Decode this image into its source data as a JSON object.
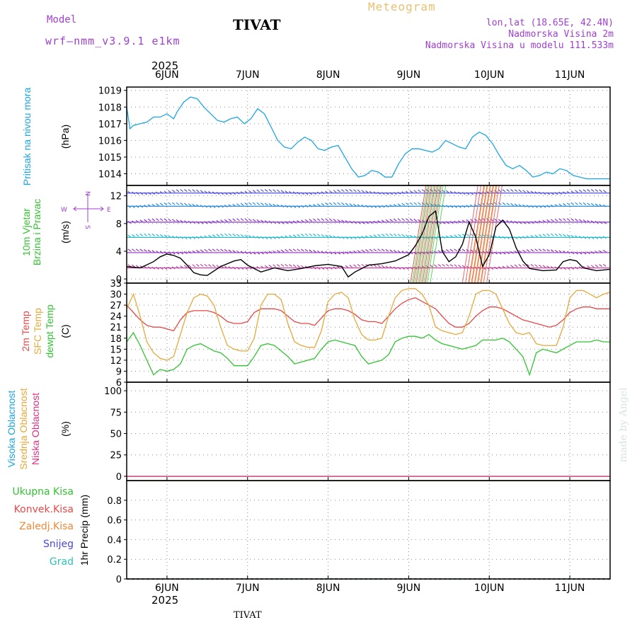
{
  "header": {
    "model_label": "Model",
    "model_name": "wrf—nmm_v3.9.1  e1km",
    "station": "TIVAT",
    "meteogram": "Meteogram",
    "lonlat": "lon,lat (18.65E, 42.4N)",
    "elevation": "Nadmorska Visina 2m",
    "model_elevation": "Nadmorska Visina u modelu 111.533m",
    "credit": "made by Angel"
  },
  "colors": {
    "pressure": "#1aa6e6",
    "temp2m": "#e84848",
    "sfc_temp": "#e6a83a",
    "dewpt": "#30c430",
    "wind_speed": "#000000",
    "purple_text": "#a040d0",
    "grid": "#888888"
  },
  "x_axis": {
    "top_year": "2025",
    "bottom_year": "2025",
    "days": [
      "6JUN",
      "7JUN",
      "8JUN",
      "9JUN",
      "10JUN",
      "11JUN"
    ],
    "start": 0,
    "end": 144,
    "day_positions": [
      12,
      36,
      60,
      84,
      108,
      132
    ],
    "bottom_label": "TIVAT"
  },
  "chart_data": [
    {
      "type": "line",
      "id": "pressure",
      "ylabel_main": "Pritisak na nivou mora",
      "unit": "(hPa)",
      "ylim": [
        1013.3,
        1019.2
      ],
      "yticks": [
        1014,
        1015,
        1016,
        1017,
        1018,
        1019
      ],
      "grid": true,
      "series": [
        {
          "x": [
            0,
            1,
            2,
            4,
            6,
            8,
            10,
            12,
            14,
            15,
            17,
            19,
            21,
            23,
            25,
            27,
            29,
            31,
            33,
            35,
            37,
            39,
            41,
            43,
            45,
            47,
            49,
            51,
            53,
            55,
            57,
            59,
            61,
            63,
            65,
            67,
            69,
            71,
            73,
            75,
            77,
            79,
            81,
            83,
            85,
            87,
            89,
            91,
            93,
            95,
            97,
            99,
            101,
            103,
            105,
            107,
            109,
            111,
            113,
            115,
            117,
            119,
            121,
            123,
            125,
            127,
            129,
            131,
            133,
            135,
            137,
            139,
            141,
            143,
            144
          ],
          "values": [
            1018.0,
            1016.7,
            1016.9,
            1017.0,
            1017.1,
            1017.4,
            1017.4,
            1017.6,
            1017.3,
            1017.7,
            1018.3,
            1018.6,
            1018.5,
            1018.0,
            1017.6,
            1017.2,
            1017.1,
            1017.3,
            1017.4,
            1017.0,
            1017.3,
            1017.9,
            1017.6,
            1016.8,
            1016.0,
            1015.6,
            1015.5,
            1015.9,
            1016.2,
            1016.0,
            1015.5,
            1015.4,
            1015.6,
            1015.7,
            1015.0,
            1014.3,
            1013.8,
            1013.9,
            1014.2,
            1014.1,
            1013.8,
            1013.8,
            1014.6,
            1015.2,
            1015.5,
            1015.5,
            1015.4,
            1015.3,
            1015.5,
            1016.0,
            1015.8,
            1015.6,
            1015.5,
            1016.2,
            1016.5,
            1016.3,
            1015.8,
            1015.1,
            1014.5,
            1014.3,
            1014.5,
            1014.2,
            1013.8,
            1013.9,
            1014.1,
            1014.0,
            1014.3,
            1014.2,
            1013.9,
            1013.8,
            1013.7,
            1013.7,
            1013.7,
            1013.7,
            1013.7
          ]
        }
      ]
    },
    {
      "type": "line",
      "id": "wind",
      "ylabel_main": "10m Vjetar",
      "ylabel_sub": "Brzina i Pravac",
      "unit": "(m/s)",
      "compass": {
        "n": "N",
        "s": "S",
        "e": "E",
        "w": "W"
      },
      "ylim": [
        -0.6,
        13.5
      ],
      "yticks": [
        0,
        4,
        8,
        12
      ],
      "grid": true,
      "series": [
        {
          "x": [
            0,
            4,
            8,
            10,
            12,
            14,
            16,
            18,
            20,
            22,
            24,
            28,
            32,
            34,
            36,
            40,
            44,
            48,
            52,
            56,
            60,
            64,
            66,
            68,
            72,
            76,
            80,
            84,
            86,
            88,
            90,
            92,
            94,
            96,
            98,
            100,
            102,
            104,
            106,
            108,
            110,
            112,
            114,
            116,
            118,
            120,
            124,
            128,
            130,
            132,
            134,
            136,
            140,
            144
          ],
          "values": [
            1.8,
            1.6,
            2.5,
            3.2,
            3.6,
            3.4,
            3.0,
            2.0,
            0.9,
            0.6,
            0.5,
            1.8,
            2.6,
            2.8,
            2.0,
            1.0,
            1.6,
            1.2,
            1.5,
            1.9,
            2.1,
            1.8,
            0.3,
            1.0,
            2.0,
            2.2,
            2.6,
            3.5,
            4.8,
            6.5,
            9.0,
            9.8,
            4.0,
            2.5,
            3.2,
            5.0,
            8.2,
            6.0,
            1.8,
            3.5,
            7.5,
            8.5,
            7.2,
            4.5,
            2.6,
            1.5,
            1.2,
            1.3,
            2.5,
            2.8,
            2.6,
            1.6,
            1.2,
            1.4
          ]
        }
      ]
    },
    {
      "type": "line",
      "id": "temperature",
      "ylabel_lines": [
        "2m Temp",
        "SFC Temp",
        "dewpt Temp"
      ],
      "unit": "(C)",
      "ylim": [
        6,
        33
      ],
      "yticks": [
        6,
        9,
        12,
        15,
        18,
        21,
        24,
        27,
        30,
        33
      ],
      "grid": true,
      "series": [
        {
          "name": "2m Temp",
          "x": [
            0,
            2,
            4,
            6,
            8,
            10,
            12,
            14,
            16,
            18,
            20,
            22,
            24,
            26,
            28,
            30,
            32,
            34,
            36,
            38,
            40,
            42,
            44,
            46,
            48,
            50,
            52,
            54,
            56,
            58,
            60,
            62,
            64,
            66,
            68,
            70,
            72,
            74,
            76,
            78,
            80,
            82,
            84,
            86,
            88,
            90,
            92,
            94,
            96,
            98,
            100,
            102,
            104,
            106,
            108,
            110,
            112,
            114,
            116,
            118,
            120,
            122,
            124,
            126,
            128,
            130,
            132,
            134,
            136,
            138,
            140,
            142,
            144
          ],
          "values": [
            27.0,
            25.0,
            23.0,
            21.5,
            21.0,
            21.0,
            20.5,
            20.0,
            23.0,
            25.0,
            25.5,
            25.5,
            25.5,
            25.0,
            24.0,
            22.5,
            22.0,
            22.0,
            22.5,
            25.0,
            26.0,
            26.0,
            26.0,
            25.5,
            24.0,
            22.5,
            22.0,
            22.0,
            21.5,
            23.5,
            25.5,
            26.0,
            26.0,
            25.5,
            24.5,
            23.0,
            22.5,
            22.5,
            22.0,
            24.0,
            26.0,
            27.5,
            28.5,
            29.0,
            28.0,
            27.0,
            26.0,
            24.0,
            22.0,
            21.0,
            21.0,
            22.0,
            24.0,
            25.5,
            26.5,
            26.5,
            26.0,
            25.0,
            24.0,
            23.0,
            22.5,
            22.0,
            21.5,
            21.0,
            21.5,
            23.0,
            25.0,
            26.0,
            26.5,
            26.5,
            26.0,
            26.0,
            26.0
          ]
        },
        {
          "name": "SFC Temp",
          "x": [
            0,
            2,
            4,
            6,
            8,
            10,
            12,
            14,
            16,
            18,
            20,
            22,
            24,
            26,
            28,
            30,
            32,
            34,
            36,
            38,
            40,
            42,
            44,
            46,
            48,
            50,
            52,
            54,
            56,
            58,
            60,
            62,
            64,
            66,
            68,
            70,
            72,
            74,
            76,
            78,
            80,
            82,
            84,
            86,
            88,
            90,
            92,
            94,
            96,
            98,
            100,
            102,
            104,
            106,
            108,
            110,
            112,
            114,
            116,
            118,
            120,
            122,
            124,
            126,
            128,
            130,
            132,
            134,
            136,
            138,
            140,
            142,
            144
          ],
          "values": [
            26.0,
            30.0,
            24.0,
            17.0,
            14.0,
            12.5,
            12.0,
            13.0,
            19.0,
            25.0,
            29.0,
            30.0,
            29.5,
            27.0,
            21.0,
            16.0,
            15.0,
            14.5,
            14.5,
            18.0,
            27.0,
            30.0,
            30.0,
            28.5,
            22.0,
            17.0,
            16.0,
            15.5,
            15.5,
            20.0,
            28.0,
            30.0,
            30.5,
            29.0,
            23.0,
            19.0,
            17.5,
            17.5,
            18.0,
            24.0,
            29.0,
            31.0,
            31.5,
            31.5,
            30.0,
            27.0,
            21.0,
            20.0,
            19.5,
            19.0,
            19.5,
            24.0,
            30.0,
            31.0,
            31.0,
            30.0,
            26.0,
            22.0,
            19.5,
            19.0,
            19.5,
            16.5,
            16.0,
            16.0,
            16.0,
            21.0,
            29.0,
            31.0,
            31.0,
            30.0,
            29.0,
            30.0,
            30.5
          ]
        },
        {
          "name": "dewpt Temp",
          "x": [
            0,
            2,
            4,
            6,
            8,
            10,
            12,
            14,
            16,
            18,
            20,
            22,
            24,
            26,
            28,
            30,
            32,
            34,
            36,
            38,
            40,
            42,
            44,
            46,
            48,
            50,
            52,
            54,
            56,
            58,
            60,
            62,
            64,
            66,
            68,
            70,
            72,
            74,
            76,
            78,
            80,
            82,
            84,
            86,
            88,
            90,
            92,
            94,
            96,
            98,
            100,
            102,
            104,
            106,
            108,
            110,
            112,
            114,
            116,
            118,
            120,
            122,
            124,
            126,
            128,
            130,
            132,
            134,
            136,
            138,
            140,
            142,
            144
          ],
          "values": [
            17.0,
            19.5,
            16.0,
            12.0,
            8.0,
            9.5,
            9.0,
            9.5,
            11.0,
            15.0,
            16.0,
            16.5,
            15.5,
            14.5,
            14.0,
            12.5,
            10.5,
            10.5,
            10.5,
            13.0,
            16.0,
            16.5,
            16.0,
            14.5,
            13.0,
            11.0,
            11.5,
            12.0,
            12.5,
            15.0,
            17.0,
            17.5,
            17.0,
            16.5,
            16.0,
            13.0,
            11.0,
            11.5,
            12.0,
            13.5,
            17.0,
            18.0,
            18.5,
            18.5,
            18.0,
            19.0,
            17.5,
            16.5,
            16.0,
            15.5,
            15.0,
            15.5,
            16.0,
            17.5,
            17.5,
            17.5,
            18.0,
            17.0,
            15.0,
            13.0,
            8.0,
            14.0,
            15.0,
            14.5,
            14.0,
            15.0,
            16.0,
            17.0,
            17.0,
            17.0,
            17.5,
            17.0,
            17.0
          ]
        }
      ]
    },
    {
      "type": "line",
      "id": "cloud",
      "ylabel_lines": [
        "Visoka Oblacnost",
        "Srednja Oblacnost",
        "Niska Oblacnost"
      ],
      "unit": "(%)",
      "ylim": [
        -5,
        110
      ],
      "yticks": [
        0,
        25,
        50,
        75,
        100
      ],
      "grid": true,
      "series": [
        {
          "name": "Visoka Oblacnost",
          "x": [
            0,
            144
          ],
          "values": [
            0,
            0
          ]
        },
        {
          "name": "Srednja Oblacnost",
          "x": [
            0,
            144
          ],
          "values": [
            0,
            0
          ]
        },
        {
          "name": "Niska Oblacnost",
          "x": [
            0,
            144
          ],
          "values": [
            0,
            0
          ]
        }
      ]
    },
    {
      "type": "bar",
      "id": "precip",
      "ylabel_main": "1hr Precip (mm)",
      "legend": [
        "Ukupna Kisa",
        "Konvek.Kisa",
        "Zaledj.Kisa",
        "Snijeg",
        "Grad"
      ],
      "legend_colors": [
        "#30c430",
        "#e84848",
        "#f08838",
        "#4848e0",
        "#30c0b8"
      ],
      "ylim": [
        0,
        1.0
      ],
      "yticks": [
        0,
        0.2,
        0.4,
        0.6,
        0.8
      ],
      "grid": true,
      "series": [
        {
          "name": "Ukupna Kisa",
          "x": [
            0,
            144
          ],
          "values": [
            0,
            0
          ]
        }
      ]
    }
  ]
}
